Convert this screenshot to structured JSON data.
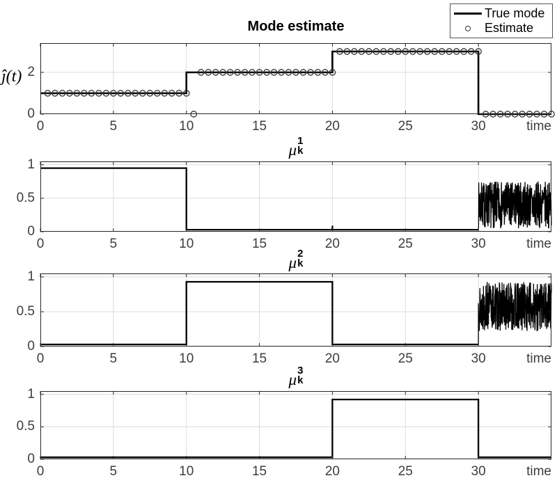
{
  "figure": {
    "title": "Mode estimate"
  },
  "legend": {
    "items": [
      {
        "swatch": "line",
        "label": "True mode"
      },
      {
        "swatch": "circle",
        "label": "Estimate"
      }
    ]
  },
  "colors": {
    "line": "#000000",
    "marker_edge": "#333333",
    "grid": "#dcdcdc",
    "axis": "#262626",
    "tick_text": "#3d3d3d"
  },
  "chart_data": [
    {
      "type": "line",
      "title": "Mode estimate",
      "ylabel": "ĵ(t)",
      "xlabel": "time",
      "xlim": [
        0,
        35
      ],
      "ylim": [
        0,
        3.4
      ],
      "xticks": [
        0,
        5,
        10,
        15,
        20,
        25,
        30
      ],
      "xtick_labels": [
        "0",
        "5",
        "10",
        "15",
        "20",
        "25",
        "30"
      ],
      "yticks": [
        0,
        2
      ],
      "ytick_labels": [
        "0",
        "2"
      ],
      "grid_x": [
        5,
        10,
        15,
        20,
        25,
        30
      ],
      "grid_y": [
        2
      ],
      "grid": true,
      "legend_position": "top-right-outside",
      "series": [
        {
          "name": "True mode",
          "style": "step-line",
          "segments": [
            {
              "t0": 0,
              "t1": 10,
              "v": 1
            },
            {
              "t0": 10,
              "t1": 20,
              "v": 2
            },
            {
              "t0": 20,
              "t1": 30,
              "v": 3
            },
            {
              "t0": 30,
              "t1": 35,
              "v": 0
            }
          ]
        },
        {
          "name": "Estimate",
          "style": "circles",
          "runs": [
            {
              "from": 0.5,
              "to": 10,
              "step": 0.5,
              "v": 1
            },
            {
              "from": 10.5,
              "to": 10.5,
              "step": 0.5,
              "v": 0
            },
            {
              "from": 11,
              "to": 20,
              "step": 0.5,
              "v": 2
            },
            {
              "from": 20.5,
              "to": 30,
              "step": 0.5,
              "v": 3
            },
            {
              "from": 30.5,
              "to": 35,
              "step": 0.5,
              "v": 0
            }
          ]
        }
      ]
    },
    {
      "type": "line",
      "title_math": {
        "symbol": "μ",
        "sub": "k",
        "sup": "1"
      },
      "xlabel": "time",
      "xlim": [
        0,
        35
      ],
      "ylim": [
        0,
        1.05
      ],
      "xticks": [
        0,
        5,
        10,
        15,
        20,
        25,
        30
      ],
      "xtick_labels": [
        "0",
        "5",
        "10",
        "15",
        "20",
        "25",
        "30"
      ],
      "yticks": [
        0,
        0.5,
        1
      ],
      "ytick_labels": [
        "0",
        "0.5",
        "1"
      ],
      "grid_x": [
        5,
        10,
        15,
        20,
        25,
        30
      ],
      "grid_y": [
        0.5,
        1
      ],
      "grid": true,
      "series": [
        {
          "name": "mu1",
          "style": "step-line",
          "segments": [
            {
              "t0": 0,
              "t1": 10,
              "v": 0.95
            },
            {
              "t0": 10,
              "t1": 30,
              "v": 0.03
            }
          ]
        }
      ],
      "spikes": [
        {
          "t": 20,
          "base": 0.03,
          "v": 0.09
        }
      ],
      "noise": {
        "t0": 30,
        "t1": 35,
        "lo": 0.05,
        "hi": 0.75,
        "start": 0.03,
        "points": 450,
        "seed": 7
      }
    },
    {
      "type": "line",
      "title_math": {
        "symbol": "μ",
        "sub": "k",
        "sup": "2"
      },
      "xlabel": "time",
      "xlim": [
        0,
        35
      ],
      "ylim": [
        0,
        1.05
      ],
      "xticks": [
        0,
        5,
        10,
        15,
        20,
        25,
        30
      ],
      "xtick_labels": [
        "0",
        "5",
        "10",
        "15",
        "20",
        "25",
        "30"
      ],
      "yticks": [
        0,
        0.5,
        1
      ],
      "ytick_labels": [
        "0",
        "0.5",
        "1"
      ],
      "grid_x": [
        5,
        10,
        15,
        20,
        25,
        30
      ],
      "grid_y": [
        0.5,
        1
      ],
      "grid": true,
      "series": [
        {
          "name": "mu2",
          "style": "step-line",
          "segments": [
            {
              "t0": 0,
              "t1": 10,
              "v": 0.03
            },
            {
              "t0": 10,
              "t1": 20,
              "v": 0.93
            },
            {
              "t0": 20,
              "t1": 30,
              "v": 0.03
            }
          ]
        }
      ],
      "noise": {
        "t0": 30,
        "t1": 35,
        "lo": 0.22,
        "hi": 0.93,
        "start": 0.03,
        "points": 450,
        "seed": 13
      }
    },
    {
      "type": "line",
      "title_math": {
        "symbol": "μ",
        "sub": "k",
        "sup": "3"
      },
      "xlabel": "time",
      "xlim": [
        0,
        35
      ],
      "ylim": [
        0,
        1.05
      ],
      "xticks": [
        0,
        5,
        10,
        15,
        20,
        25,
        30
      ],
      "xtick_labels": [
        "0",
        "5",
        "10",
        "15",
        "20",
        "25",
        "30"
      ],
      "yticks": [
        0,
        0.5,
        1
      ],
      "ytick_labels": [
        "0",
        "0.5",
        "1"
      ],
      "grid_x": [
        5,
        10,
        15,
        20,
        25,
        30
      ],
      "grid_y": [
        0.5,
        1
      ],
      "grid": true,
      "series": [
        {
          "name": "mu3",
          "style": "step-line",
          "segments": [
            {
              "t0": 0,
              "t1": 20,
              "v": 0.03
            },
            {
              "t0": 20,
              "t1": 30,
              "v": 0.92
            },
            {
              "t0": 30,
              "t1": 35,
              "v": 0.03
            }
          ]
        }
      ]
    }
  ]
}
